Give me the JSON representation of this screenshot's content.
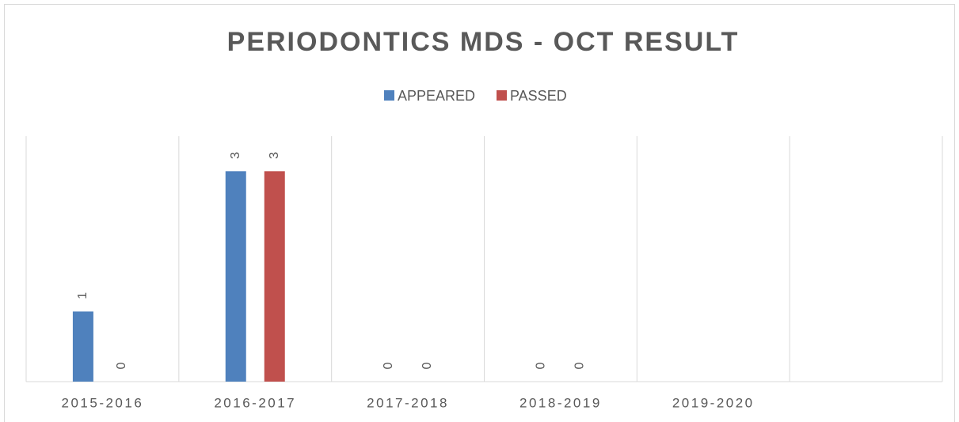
{
  "chart_data": {
    "type": "bar",
    "title": "PERIODONTICS MDS - OCT RESULT",
    "categories": [
      "2015-2016",
      "2016-2017",
      "2017-2018",
      "2018-2019",
      "2019-2020",
      null
    ],
    "series": [
      {
        "name": "APPEARED",
        "color": "#4f81bd",
        "values": [
          1,
          3,
          0,
          0,
          null,
          null
        ]
      },
      {
        "name": "PASSED",
        "color": "#c0504d",
        "values": [
          0,
          3,
          0,
          0,
          null,
          null
        ]
      }
    ],
    "ylim": [
      0,
      3.5
    ],
    "grid": true,
    "legend": "top"
  }
}
